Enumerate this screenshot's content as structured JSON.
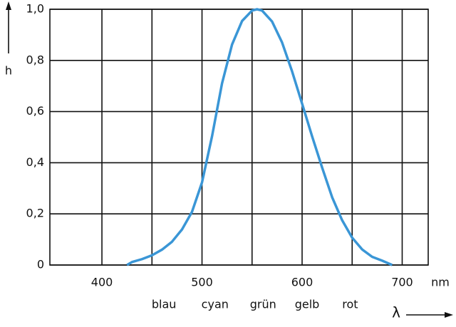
{
  "chart_data": {
    "type": "line",
    "y_label": "h",
    "x_label": "λ",
    "x_unit": "nm",
    "x": [
      425,
      430,
      440,
      450,
      460,
      470,
      480,
      490,
      500,
      510,
      520,
      530,
      540,
      550,
      555,
      560,
      570,
      580,
      590,
      600,
      610,
      620,
      630,
      640,
      650,
      660,
      670,
      680,
      690
    ],
    "series": [
      {
        "color": "#3a96d6",
        "values": [
          0,
          0.0116,
          0.023,
          0.038,
          0.06,
          0.091,
          0.139,
          0.208,
          0.323,
          0.503,
          0.71,
          0.862,
          0.954,
          0.995,
          1.0,
          0.995,
          0.952,
          0.87,
          0.757,
          0.631,
          0.503,
          0.381,
          0.265,
          0.175,
          0.107,
          0.061,
          0.032,
          0.017,
          0
        ]
      }
    ],
    "xlim": [
      348,
      726
    ],
    "ylim": [
      0,
      1
    ],
    "xticks": [
      400,
      500,
      600,
      700
    ],
    "xminor": [
      450,
      550,
      650
    ],
    "yticks": [
      0,
      {
        "value": 0.2,
        "label": "0,2"
      },
      {
        "value": 0.4,
        "label": "0,4"
      },
      {
        "value": 0.6,
        "label": "0,6"
      },
      {
        "value": 0.8,
        "label": "0,8"
      },
      {
        "value": 1.0,
        "label": "1,0"
      }
    ],
    "grid": true,
    "annotations": [
      {
        "text": "blau",
        "x": 462
      },
      {
        "text": "cyan",
        "x": 513
      },
      {
        "text": "grün",
        "x": 561
      },
      {
        "text": "gelb",
        "x": 605
      },
      {
        "text": "rot",
        "x": 648
      }
    ]
  }
}
